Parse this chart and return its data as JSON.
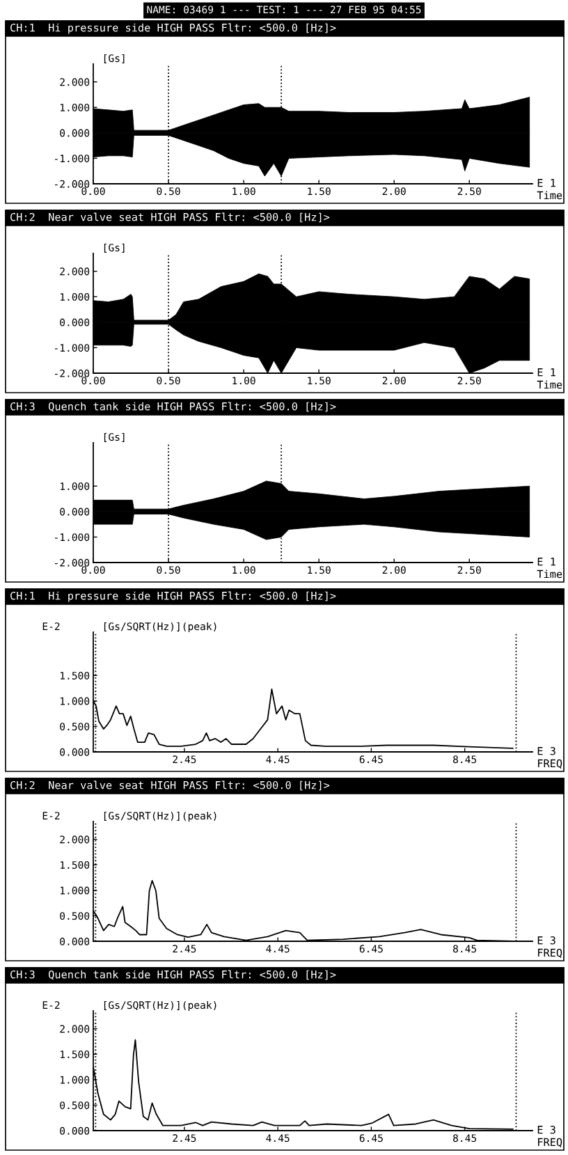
{
  "chart_data": [
    {
      "type": "area",
      "title": "NAME: 03469 1 --- TEST: 1 --- 27 FEB 95 04:55",
      "subtitle": "CH:1  Hi pressure side HIGH PASS Fltr: <500.0 [Hz]>",
      "ylabel": "[Gs]",
      "xlabel": "Time",
      "annotations": [
        "E 1"
      ],
      "xlim": [
        0,
        2.92
      ],
      "ylim": [
        -2,
        2.7
      ],
      "xticks": [
        {
          "value": 0,
          "label": "0.00"
        },
        {
          "value": 0.5,
          "label": "0.50"
        },
        {
          "value": 1,
          "label": "1.00"
        },
        {
          "value": 1.5,
          "label": "1.50"
        },
        {
          "value": 2,
          "label": "2.00"
        },
        {
          "value": 2.5,
          "label": "2.50"
        }
      ],
      "yticks": [
        {
          "value": -2,
          "label": "-2.000"
        },
        {
          "value": -1,
          "label": "-1.000"
        },
        {
          "value": 0,
          "label": "0.000"
        },
        {
          "value": 1,
          "label": "1.000"
        },
        {
          "value": 2,
          "label": "2.000"
        }
      ],
      "ref_lines": [
        {
          "axis": "x",
          "value": 0.5,
          "line_style": "dotted",
          "color": "#000000"
        },
        {
          "axis": "x",
          "value": 1.25,
          "line_style": "dotted",
          "color": "#000000"
        }
      ],
      "series": [
        {
          "color": "#000000",
          "x": [
            0,
            0.1,
            0.2,
            0.26,
            0.27,
            0.5,
            0.6,
            0.7,
            0.8,
            0.9,
            1.0,
            1.1,
            1.14,
            1.2,
            1.25,
            1.3,
            1.5,
            1.7,
            2.0,
            2.2,
            2.45,
            2.47,
            2.5,
            2.7,
            2.9
          ],
          "values": [
            0.95,
            0.9,
            0.85,
            0.9,
            0.1,
            0.1,
            0.3,
            0.5,
            0.7,
            0.9,
            1.1,
            1.15,
            1.0,
            1.0,
            1.0,
            0.85,
            0.85,
            0.8,
            0.8,
            0.85,
            0.95,
            1.3,
            0.95,
            1.1,
            1.4
          ]
        },
        {
          "color": "#000000",
          "x": [
            0,
            0.1,
            0.2,
            0.26,
            0.27,
            0.5,
            0.6,
            0.7,
            0.8,
            0.9,
            1.0,
            1.1,
            1.14,
            1.2,
            1.25,
            1.3,
            1.5,
            1.7,
            2.0,
            2.2,
            2.45,
            2.47,
            2.5,
            2.7,
            2.9
          ],
          "values": [
            -0.95,
            -0.9,
            -0.9,
            -0.95,
            -0.1,
            -0.1,
            -0.3,
            -0.5,
            -0.7,
            -1.0,
            -1.2,
            -1.3,
            -1.7,
            -1.2,
            -1.7,
            -1.0,
            -0.95,
            -0.9,
            -0.85,
            -0.9,
            -1.05,
            -1.5,
            -1.0,
            -1.2,
            -1.35
          ]
        }
      ]
    },
    {
      "type": "area",
      "subtitle": "CH:2  Near valve seat HIGH PASS Fltr: <500.0 [Hz]>",
      "ylabel": "[Gs]",
      "xlabel": "Time",
      "annotations": [
        "E 1"
      ],
      "xlim": [
        0,
        2.92
      ],
      "ylim": [
        -2,
        2.7
      ],
      "xticks": [
        {
          "value": 0,
          "label": "0.00"
        },
        {
          "value": 0.5,
          "label": "0.50"
        },
        {
          "value": 1,
          "label": "1.00"
        },
        {
          "value": 1.5,
          "label": "1.50"
        },
        {
          "value": 2,
          "label": "2.00"
        },
        {
          "value": 2.5,
          "label": "2.50"
        }
      ],
      "yticks": [
        {
          "value": -2,
          "label": "-2.000"
        },
        {
          "value": -1,
          "label": "-1.000"
        },
        {
          "value": 0,
          "label": "0.000"
        },
        {
          "value": 1,
          "label": "1.000"
        },
        {
          "value": 2,
          "label": "2.000"
        }
      ],
      "ref_lines": [
        {
          "axis": "x",
          "value": 0.5,
          "line_style": "dotted",
          "color": "#000000"
        },
        {
          "axis": "x",
          "value": 1.25,
          "line_style": "dotted",
          "color": "#000000"
        }
      ],
      "series": [
        {
          "color": "#000000",
          "x": [
            0,
            0.1,
            0.2,
            0.25,
            0.26,
            0.27,
            0.5,
            0.55,
            0.6,
            0.7,
            0.85,
            1.0,
            1.1,
            1.16,
            1.2,
            1.25,
            1.35,
            1.5,
            1.7,
            2.0,
            2.2,
            2.4,
            2.5,
            2.6,
            2.7,
            2.8,
            2.9
          ],
          "values": [
            0.85,
            0.8,
            0.9,
            1.1,
            1.0,
            0.08,
            0.08,
            0.3,
            0.8,
            0.9,
            1.4,
            1.6,
            1.9,
            1.8,
            1.5,
            1.5,
            1.0,
            1.2,
            1.1,
            1.0,
            0.9,
            1.0,
            1.8,
            1.7,
            1.3,
            1.8,
            1.7
          ]
        },
        {
          "color": "#000000",
          "x": [
            0,
            0.1,
            0.2,
            0.25,
            0.26,
            0.27,
            0.5,
            0.55,
            0.6,
            0.7,
            0.85,
            1.0,
            1.1,
            1.16,
            1.2,
            1.25,
            1.35,
            1.5,
            1.7,
            2.0,
            2.2,
            2.4,
            2.5,
            2.6,
            2.7,
            2.8,
            2.9
          ],
          "values": [
            -0.9,
            -0.9,
            -0.9,
            -0.95,
            -0.9,
            -0.08,
            -0.08,
            -0.3,
            -0.5,
            -0.75,
            -1.0,
            -1.3,
            -1.4,
            -2.0,
            -1.5,
            -2.0,
            -1.0,
            -1.1,
            -1.1,
            -1.1,
            -0.8,
            -1.0,
            -2.0,
            -1.8,
            -1.5,
            -1.5,
            -1.5
          ]
        }
      ]
    },
    {
      "type": "area",
      "subtitle": "CH:3  Quench tank side HIGH PASS Fltr: <500.0 [Hz]>",
      "ylabel": "[Gs]",
      "xlabel": "Time",
      "annotations": [
        "E 1"
      ],
      "xlim": [
        0,
        2.92
      ],
      "ylim": [
        -2,
        2.7
      ],
      "xticks": [
        {
          "value": 0,
          "label": "0.00"
        },
        {
          "value": 0.5,
          "label": "0.50"
        },
        {
          "value": 1,
          "label": "1.00"
        },
        {
          "value": 1.5,
          "label": "1.50"
        },
        {
          "value": 2,
          "label": "2.00"
        },
        {
          "value": 2.5,
          "label": "2.50"
        }
      ],
      "yticks": [
        {
          "value": -2,
          "label": "-2.000"
        },
        {
          "value": -1,
          "label": "-1.000"
        },
        {
          "value": 0,
          "label": "0.000"
        },
        {
          "value": 1,
          "label": "1.000"
        }
      ],
      "ref_lines": [
        {
          "axis": "x",
          "value": 0.5,
          "line_style": "dotted",
          "color": "#000000"
        },
        {
          "axis": "x",
          "value": 1.25,
          "line_style": "dotted",
          "color": "#000000"
        }
      ],
      "series": [
        {
          "color": "#000000",
          "x": [
            0,
            0.1,
            0.26,
            0.27,
            0.5,
            0.6,
            0.8,
            1.0,
            1.15,
            1.25,
            1.3,
            1.5,
            1.8,
            2.0,
            2.3,
            2.6,
            2.9
          ],
          "values": [
            0.45,
            0.45,
            0.45,
            0.1,
            0.1,
            0.25,
            0.5,
            0.8,
            1.2,
            1.1,
            0.8,
            0.7,
            0.5,
            0.6,
            0.8,
            0.9,
            1.0
          ]
        },
        {
          "color": "#000000",
          "x": [
            0,
            0.1,
            0.26,
            0.27,
            0.5,
            0.6,
            0.8,
            1.0,
            1.15,
            1.25,
            1.3,
            1.5,
            1.8,
            2.0,
            2.3,
            2.6,
            2.9
          ],
          "values": [
            -0.5,
            -0.5,
            -0.5,
            -0.1,
            -0.1,
            -0.25,
            -0.5,
            -0.7,
            -1.1,
            -1.0,
            -0.7,
            -0.6,
            -0.5,
            -0.6,
            -0.8,
            -0.9,
            -1.0
          ]
        }
      ]
    },
    {
      "type": "line",
      "subtitle": "CH:1  Hi pressure side HIGH PASS Fltr: <500.0 [Hz]>",
      "ylabel": "[Gs/SQRT(Hz)](peak)",
      "xlabel": "FREQ",
      "annotations": [
        "E 3",
        "E-2"
      ],
      "xlim": [
        0.5,
        9.9
      ],
      "ylim": [
        0,
        2.35
      ],
      "xticks": [
        2.45,
        4.45,
        6.45,
        8.45
      ],
      "yticks": [
        {
          "value": 0,
          "label": "0.000"
        },
        {
          "value": 0.5,
          "label": "0.500"
        },
        {
          "value": 1,
          "label": "1.000"
        },
        {
          "value": 1.5,
          "label": "1.500"
        }
      ],
      "ref_lines": [
        {
          "axis": "x",
          "value": 0.55,
          "line_style": "dotted",
          "color": "#000000"
        },
        {
          "axis": "x",
          "value": 9.55,
          "line_style": "dotted",
          "color": "#000000"
        }
      ],
      "series": [
        {
          "color": "#000000",
          "x": [
            0.5,
            0.56,
            0.62,
            0.72,
            0.79,
            0.87,
            0.99,
            1.06,
            1.14,
            1.22,
            1.3,
            1.37,
            1.45,
            1.6,
            1.68,
            1.8,
            1.91,
            2.07,
            2.38,
            2.69,
            2.84,
            2.92,
            2.99,
            3.11,
            3.23,
            3.34,
            3.46,
            3.77,
            3.92,
            4.08,
            4.23,
            4.32,
            4.42,
            4.54,
            4.62,
            4.69,
            4.81,
            4.92,
            5.04,
            5.16,
            5.47,
            6.24,
            6.78,
            7.78,
            8.55,
            9.48
          ],
          "values": [
            1.0,
            0.9,
            0.6,
            0.45,
            0.52,
            0.63,
            0.9,
            0.75,
            0.75,
            0.52,
            0.7,
            0.45,
            0.19,
            0.19,
            0.37,
            0.34,
            0.15,
            0.11,
            0.11,
            0.15,
            0.22,
            0.37,
            0.22,
            0.26,
            0.19,
            0.26,
            0.15,
            0.15,
            0.26,
            0.45,
            0.63,
            1.23,
            0.75,
            0.9,
            0.63,
            0.82,
            0.75,
            0.75,
            0.22,
            0.13,
            0.11,
            0.11,
            0.13,
            0.13,
            0.1,
            0.07
          ]
        }
      ]
    },
    {
      "type": "line",
      "subtitle": "CH:2  Near valve seat HIGH PASS Fltr: <500.0 [Hz]>",
      "ylabel": "[Gs/SQRT(Hz)](peak)",
      "xlabel": "FREQ",
      "annotations": [
        "E 3",
        "E-2"
      ],
      "xlim": [
        0.5,
        9.9
      ],
      "ylim": [
        0,
        2.35
      ],
      "xticks": [
        2.45,
        4.45,
        6.45,
        8.45
      ],
      "yticks": [
        {
          "value": 0,
          "label": "0.000"
        },
        {
          "value": 0.5,
          "label": "0.500"
        },
        {
          "value": 1,
          "label": "1.000"
        },
        {
          "value": 1.5,
          "label": "1.500"
        },
        {
          "value": 2,
          "label": "2.000"
        }
      ],
      "ref_lines": [
        {
          "axis": "x",
          "value": 0.55,
          "line_style": "dotted",
          "color": "#000000"
        },
        {
          "axis": "x",
          "value": 9.55,
          "line_style": "dotted",
          "color": "#000000"
        }
      ],
      "series": [
        {
          "color": "#000000",
          "x": [
            0.5,
            0.6,
            0.72,
            0.83,
            0.95,
            1.03,
            1.13,
            1.18,
            1.3,
            1.41,
            1.49,
            1.64,
            1.7,
            1.76,
            1.84,
            1.91,
            2.07,
            2.3,
            2.53,
            2.8,
            2.93,
            3.03,
            3.3,
            3.77,
            4.23,
            4.62,
            4.92,
            5.08,
            5.85,
            6.62,
            7.16,
            7.51,
            7.94,
            8.55,
            8.71,
            9.48
          ],
          "values": [
            0.6,
            0.45,
            0.21,
            0.33,
            0.29,
            0.48,
            0.68,
            0.37,
            0.29,
            0.21,
            0.13,
            0.13,
            0.99,
            1.19,
            0.99,
            0.45,
            0.25,
            0.13,
            0.08,
            0.13,
            0.33,
            0.17,
            0.09,
            0.02,
            0.09,
            0.21,
            0.17,
            0.02,
            0.04,
            0.09,
            0.17,
            0.23,
            0.13,
            0.07,
            0.02,
            0.0
          ]
        }
      ]
    },
    {
      "type": "line",
      "subtitle": "CH:3  Quench tank side HIGH PASS Fltr: <500.0 [Hz]>",
      "ylabel": "[Gs/SQRT(Hz)](peak)",
      "xlabel": "FREQ",
      "annotations": [
        "E 3",
        "E-2"
      ],
      "xlim": [
        0.5,
        9.9
      ],
      "ylim": [
        0,
        2.35
      ],
      "xticks": [
        2.45,
        4.45,
        6.45,
        8.45
      ],
      "yticks": [
        {
          "value": 0,
          "label": "0.000"
        },
        {
          "value": 0.5,
          "label": "0.500"
        },
        {
          "value": 1,
          "label": "1.000"
        },
        {
          "value": 1.5,
          "label": "1.500"
        },
        {
          "value": 2,
          "label": "2.000"
        }
      ],
      "ref_lines": [
        {
          "axis": "x",
          "value": 0.55,
          "line_style": "dotted",
          "color": "#000000"
        },
        {
          "axis": "x",
          "value": 9.55,
          "line_style": "dotted",
          "color": "#000000"
        }
      ],
      "series": [
        {
          "color": "#000000",
          "x": [
            0.5,
            0.6,
            0.72,
            0.87,
            0.97,
            1.05,
            1.18,
            1.3,
            1.36,
            1.4,
            1.47,
            1.57,
            1.67,
            1.76,
            1.85,
            1.99,
            2.38,
            2.69,
            2.84,
            3.03,
            3.46,
            3.92,
            4.11,
            4.38,
            4.92,
            5.03,
            5.12,
            5.5,
            6.24,
            6.47,
            6.82,
            6.93,
            7.4,
            7.78,
            8.17,
            8.55,
            9.48
          ],
          "values": [
            1.25,
            0.73,
            0.32,
            0.21,
            0.32,
            0.58,
            0.47,
            0.43,
            1.48,
            1.78,
            0.96,
            0.28,
            0.21,
            0.54,
            0.32,
            0.1,
            0.1,
            0.16,
            0.1,
            0.17,
            0.13,
            0.1,
            0.17,
            0.1,
            0.1,
            0.19,
            0.1,
            0.13,
            0.1,
            0.15,
            0.32,
            0.1,
            0.13,
            0.21,
            0.1,
            0.04,
            0.03
          ]
        }
      ]
    }
  ]
}
